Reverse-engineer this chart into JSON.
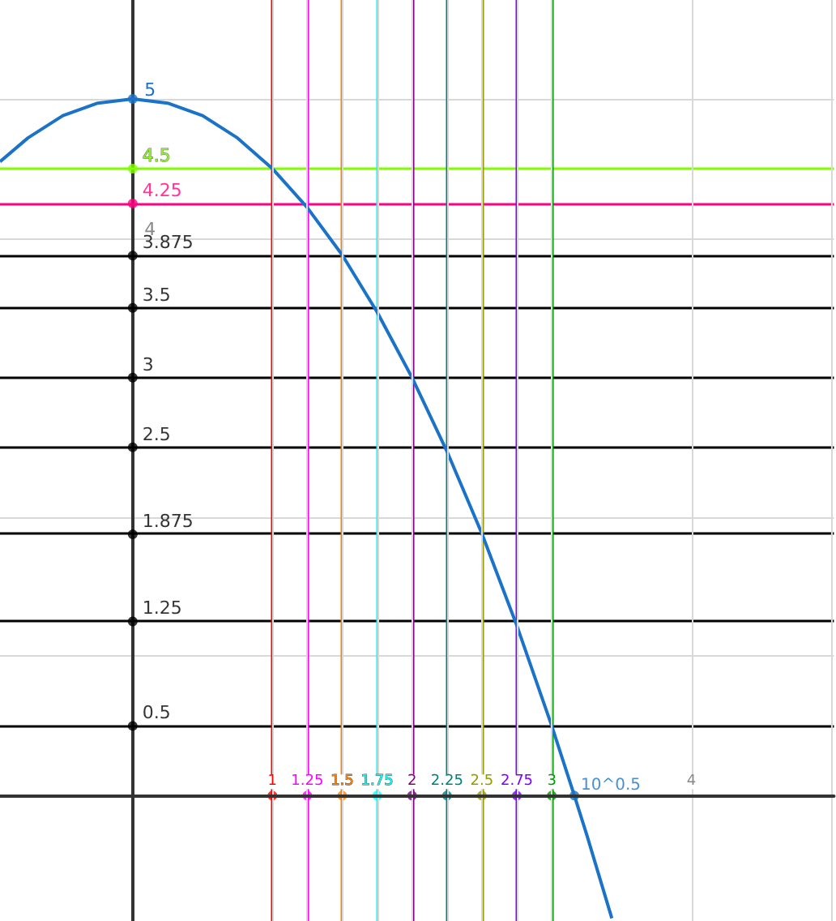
{
  "chart_data": {
    "type": "line",
    "x": [
      -0.95,
      -0.75,
      -0.5,
      -0.25,
      0,
      0.25,
      0.5,
      0.75,
      1,
      1.25,
      1.5,
      1.75,
      2,
      2.25,
      2.5,
      2.75,
      3,
      3.162,
      3.25,
      3.43
    ],
    "series": [
      {
        "color": "#1a73c8",
        "values": [
          4.55,
          4.72,
          4.88,
          4.97,
          5,
          4.97,
          4.88,
          4.72,
          4.5,
          4.22,
          3.88,
          3.47,
          3,
          2.47,
          1.88,
          1.22,
          0.5,
          0,
          -0.28,
          -0.88
        ]
      },
      {
        "type": "scatter",
        "marker": "circle",
        "x": [
          0,
          0,
          0,
          0,
          0,
          0,
          0,
          0,
          0,
          0,
          1,
          1.25,
          1.5,
          1.75,
          2,
          2.25,
          2.5,
          2.75,
          3,
          3.162
        ],
        "values": [
          5,
          4.5,
          4.25,
          3.875,
          3.5,
          3,
          2.5,
          1.875,
          1.25,
          0.5,
          0,
          0,
          0,
          0,
          0,
          0,
          0,
          0,
          0,
          0
        ],
        "colors": [
          "#1a73c8",
          "#80ff00",
          "#ff0080",
          "#000000",
          "#000000",
          "#000000",
          "#000000",
          "#000000",
          "#000000",
          "#000000",
          "#ff0000",
          "#ff00ff",
          "#ff8000",
          "#00ffff",
          "#800080",
          "#008080",
          "#999900",
          "#8000ff",
          "#009900",
          "#1a73c8"
        ]
      }
    ],
    "xlim": [
      -0.95,
      5.02
    ],
    "ylim": [
      -0.9,
      5.71
    ],
    "xticks": [
      1,
      1.25,
      1.5,
      1.75,
      2,
      2.25,
      2.5,
      2.75,
      3,
      4,
      {
        "value": 5,
        "label": null
      }
    ],
    "annotations": [
      {
        "text": "10^0.5",
        "x": 3.162,
        "y": 0
      }
    ],
    "yticks": [
      {
        "value": 1,
        "label": null
      },
      {
        "value": 2,
        "label": null
      },
      4,
      5
    ],
    "grid": true,
    "marker": "none",
    "line_style": "solid",
    "ref_lines": [
      {
        "axis": "y",
        "value": 4.5,
        "label": "4.5",
        "color": "#80ff00"
      },
      {
        "axis": "y",
        "value": 4.25,
        "label": "4.25",
        "color": "#ff0080"
      },
      {
        "axis": "y",
        "value": 3.875,
        "label": "3.875",
        "color": "#000000"
      },
      {
        "axis": "y",
        "value": 3.5,
        "label": "3.5",
        "color": "#000000"
      },
      {
        "axis": "y",
        "value": 3,
        "label": "3",
        "color": "#000000"
      },
      {
        "axis": "y",
        "value": 2.5,
        "label": "2.5",
        "color": "#000000"
      },
      {
        "axis": "y",
        "value": 1.875,
        "label": "1.875",
        "color": "#000000"
      },
      {
        "axis": "y",
        "value": 1.25,
        "label": "1.25",
        "color": "#000000"
      },
      {
        "axis": "y",
        "value": 0.5,
        "label": "0.5",
        "color": "#000000"
      },
      {
        "axis": "x",
        "value": 1,
        "color": "#ff0000"
      },
      {
        "axis": "x",
        "value": 1.25,
        "color": "#ff00ff"
      },
      {
        "axis": "x",
        "value": 1.5,
        "color": "#ff8000"
      },
      {
        "axis": "x",
        "value": 1.75,
        "color": "#00ffff"
      },
      {
        "axis": "x",
        "value": 2,
        "color": "#800080"
      },
      {
        "axis": "x",
        "value": 2.25,
        "color": "#008080"
      },
      {
        "axis": "x",
        "value": 2.5,
        "color": "#999900"
      },
      {
        "axis": "x",
        "value": 2.75,
        "color": "#8000ff"
      },
      {
        "axis": "x",
        "value": 3,
        "color": "#009900"
      }
    ]
  }
}
